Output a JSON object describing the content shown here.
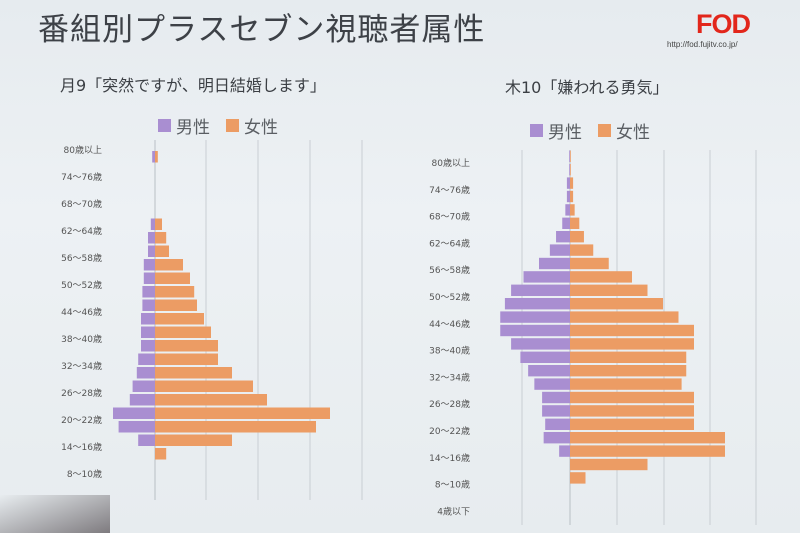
{
  "page": {
    "title": "番組別プラスセブン視聴者属性",
    "logo": "FOD",
    "url": "http://fod.fujitv.co.jp/"
  },
  "legend": {
    "male": "男性",
    "female": "女性"
  },
  "colors": {
    "male": "#a98ed1",
    "female": "#ec9c64",
    "grid": "#c9ced3"
  },
  "chart_data": [
    {
      "type": "bar",
      "title": "月9「突然ですが、明日結婚します」",
      "categories": [
        "80歳以上",
        "74〜76歳",
        "68〜70歳",
        "62〜64歳",
        "56〜58歳",
        "50〜52歳",
        "44〜46歳",
        "38〜40歳",
        "32〜34歳",
        "26〜28歳",
        "20〜22歳",
        "14〜16歳",
        "8〜10歳"
      ],
      "series": [
        {
          "name": "男性",
          "values": [
            [
              0,
              0.2
            ],
            [
              0,
              0
            ],
            [
              0,
              0
            ],
            [
              0.3,
              0.5
            ],
            [
              0.5,
              0.8
            ],
            [
              0.8,
              0.9
            ],
            [
              0.9,
              1.0
            ],
            [
              1.0,
              1.0
            ],
            [
              1.2,
              1.3
            ],
            [
              1.6,
              1.8
            ],
            [
              3.0,
              2.6
            ],
            [
              1.2,
              0
            ],
            [
              0,
              0
            ]
          ]
        },
        {
          "name": "女性",
          "values": [
            [
              0,
              0.2
            ],
            [
              0,
              0
            ],
            [
              0,
              0
            ],
            [
              0.5,
              0.8
            ],
            [
              1.0,
              2.0
            ],
            [
              2.5,
              2.8
            ],
            [
              3.0,
              3.5
            ],
            [
              4.0,
              4.5
            ],
            [
              4.5,
              5.5
            ],
            [
              7.0,
              8.0
            ],
            [
              12.5,
              11.5
            ],
            [
              5.5,
              0.8
            ],
            [
              0,
              0
            ]
          ]
        }
      ]
    },
    {
      "type": "bar",
      "title": "木10「嫌われる勇気」",
      "categories": [
        "80歳以上",
        "74〜76歳",
        "68〜70歳",
        "62〜64歳",
        "56〜58歳",
        "50〜52歳",
        "44〜46歳",
        "38〜40歳",
        "32〜34歳",
        "26〜28歳",
        "20〜22歳",
        "14〜16歳",
        "8〜10歳",
        "4歳以下"
      ],
      "series": [
        {
          "name": "男性",
          "values": [
            [
              0.05,
              0.05
            ],
            [
              0.2,
              0.2
            ],
            [
              0.3,
              0.5
            ],
            [
              0.9,
              1.3
            ],
            [
              2.0,
              3.0
            ],
            [
              3.8,
              4.2
            ],
            [
              4.5,
              4.5
            ],
            [
              3.8,
              3.2
            ],
            [
              2.7,
              2.3
            ],
            [
              1.8,
              1.8
            ],
            [
              1.6,
              1.7
            ],
            [
              0.7,
              0
            ],
            [
              0,
              0
            ],
            [
              0,
              0
            ]
          ]
        },
        {
          "name": "女性",
          "values": [
            [
              0.05,
              0.05
            ],
            [
              0.2,
              0.2
            ],
            [
              0.3,
              0.6
            ],
            [
              0.9,
              1.5
            ],
            [
              2.5,
              4.0
            ],
            [
              5.0,
              6.0
            ],
            [
              7.0,
              8.0
            ],
            [
              8.0,
              7.5
            ],
            [
              7.5,
              7.2
            ],
            [
              8.0,
              8.0
            ],
            [
              8.0,
              10.0
            ],
            [
              10.0,
              5.0
            ],
            [
              1.0,
              0
            ],
            [
              0,
              0
            ]
          ]
        }
      ]
    }
  ]
}
